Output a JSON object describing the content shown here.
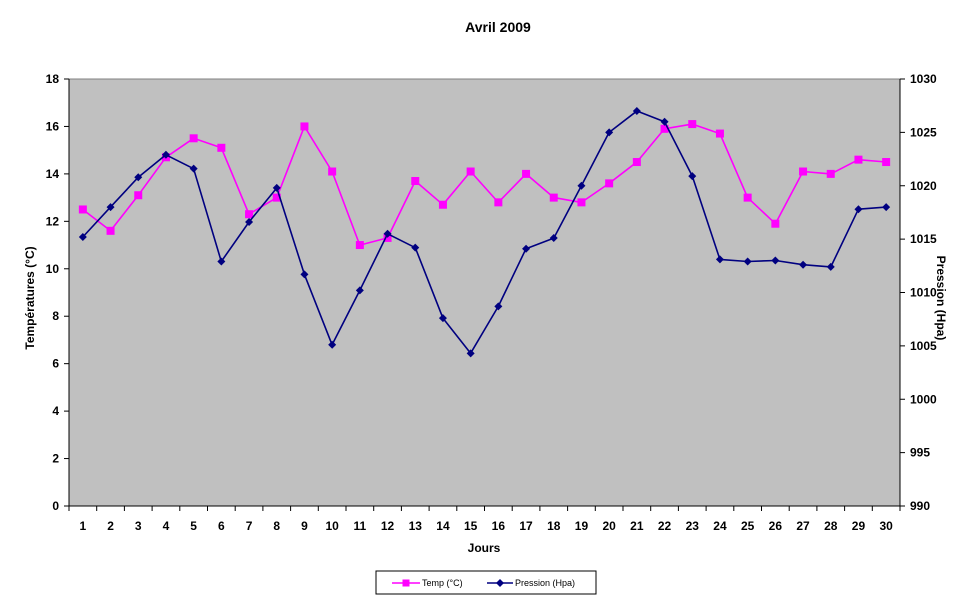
{
  "chart_data": {
    "type": "line",
    "title": "Avril 2009",
    "xlabel": "Jours",
    "ylabel": "Températures (°C)",
    "y2label": "Pression (Hpa)",
    "categories": [
      "1",
      "2",
      "3",
      "4",
      "5",
      "6",
      "7",
      "8",
      "9",
      "10",
      "11",
      "12",
      "13",
      "14",
      "15",
      "16",
      "17",
      "18",
      "19",
      "20",
      "21",
      "22",
      "23",
      "24",
      "25",
      "26",
      "27",
      "28",
      "29",
      "30"
    ],
    "ylim": [
      0,
      18
    ],
    "y2lim": [
      990,
      1030
    ],
    "yticks": [
      "0",
      "2",
      "4",
      "6",
      "8",
      "10",
      "12",
      "14",
      "16",
      "18"
    ],
    "y2ticks": [
      "990",
      "995",
      "1000",
      "1005",
      "1010",
      "1015",
      "1020",
      "1025",
      "1030"
    ],
    "series": [
      {
        "name": "Temp (°C)",
        "axis": "left",
        "color": "#ff00ff",
        "marker": "square",
        "values": [
          12.5,
          11.6,
          13.1,
          14.7,
          15.5,
          15.1,
          12.3,
          13.0,
          16.0,
          14.1,
          11.0,
          11.3,
          13.7,
          12.7,
          14.1,
          12.8,
          14.0,
          13.0,
          12.8,
          13.6,
          14.5,
          15.9,
          16.1,
          15.7,
          13.0,
          11.9,
          14.1,
          14.0,
          14.6,
          14.5
        ]
      },
      {
        "name": "Pression (Hpa)",
        "axis": "right",
        "color": "#000080",
        "marker": "diamond",
        "values": [
          1015.2,
          1018.0,
          1020.8,
          1022.9,
          1021.6,
          1012.9,
          1016.6,
          1019.8,
          1011.7,
          1005.1,
          1010.2,
          1015.5,
          1014.2,
          1007.6,
          1004.3,
          1008.7,
          1014.1,
          1015.1,
          1020.0,
          1025.0,
          1027.0,
          1026.0,
          1020.9,
          1013.1,
          1012.9,
          1013.0,
          1012.6,
          1012.4,
          1017.8,
          1018.0
        ]
      }
    ],
    "grid": false,
    "plot_background": "#c0c0c0",
    "legend_position": "bottom"
  }
}
